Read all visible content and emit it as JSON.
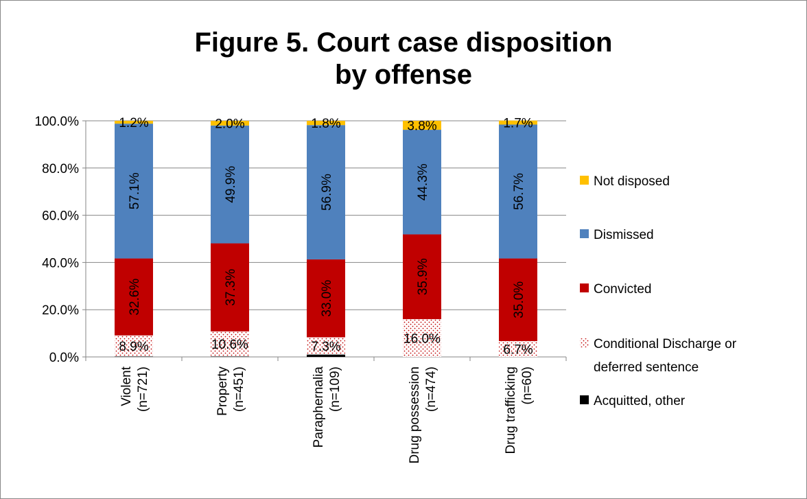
{
  "chart_data": {
    "type": "stacked_bar",
    "title": "Figure 5.  Court case disposition\nby offense",
    "categories": [
      "Violent\n(n=721)",
      "Property\n(n=451)",
      "Paraphernalia\n(n=109)",
      "Drug possession\n(n=474)",
      "Drug trafficking\n(n=60)"
    ],
    "series": [
      {
        "name": "Acquitted, other",
        "color": "#000000",
        "values": [
          0.2,
          0.2,
          1.0,
          0,
          0
        ]
      },
      {
        "name": "Conditional Discharge or\ndeferred sentence",
        "color": "#c00000",
        "pattern": "dots",
        "values": [
          8.9,
          10.6,
          7.3,
          16.0,
          6.7
        ],
        "value_labels": [
          "8.9%",
          "10.6%",
          "7.3%",
          "16.0%",
          "6.7%"
        ]
      },
      {
        "name": "Convicted",
        "color": "#c00000",
        "values": [
          32.6,
          37.3,
          33.0,
          35.9,
          35.0
        ],
        "value_labels": [
          "32.6%",
          "37.3%",
          "33.0%",
          "35.9%",
          "35.0%"
        ]
      },
      {
        "name": "Dismissed",
        "color": "#4f81bd",
        "values": [
          57.1,
          49.9,
          56.9,
          44.3,
          56.7
        ],
        "value_labels": [
          "57.1%",
          "49.9%",
          "56.9%",
          "44.3%",
          "56.7%"
        ]
      },
      {
        "name": "Not disposed",
        "color": "#ffc000",
        "values": [
          1.2,
          2.0,
          1.8,
          3.8,
          1.7
        ],
        "value_labels": [
          "1.2%",
          "2.0%",
          "1.8%",
          "3.8%",
          "1.7%"
        ]
      }
    ],
    "ylim": [
      0,
      100
    ],
    "yticks": [
      {
        "value": 0,
        "label": "0.0%"
      },
      {
        "value": 20,
        "label": "20.0%"
      },
      {
        "value": 40,
        "label": "40.0%"
      },
      {
        "value": 60,
        "label": "60.0%"
      },
      {
        "value": 80,
        "label": "80.0%"
      },
      {
        "value": 100,
        "label": "100.0%"
      }
    ],
    "grid": true,
    "legend": "right"
  }
}
